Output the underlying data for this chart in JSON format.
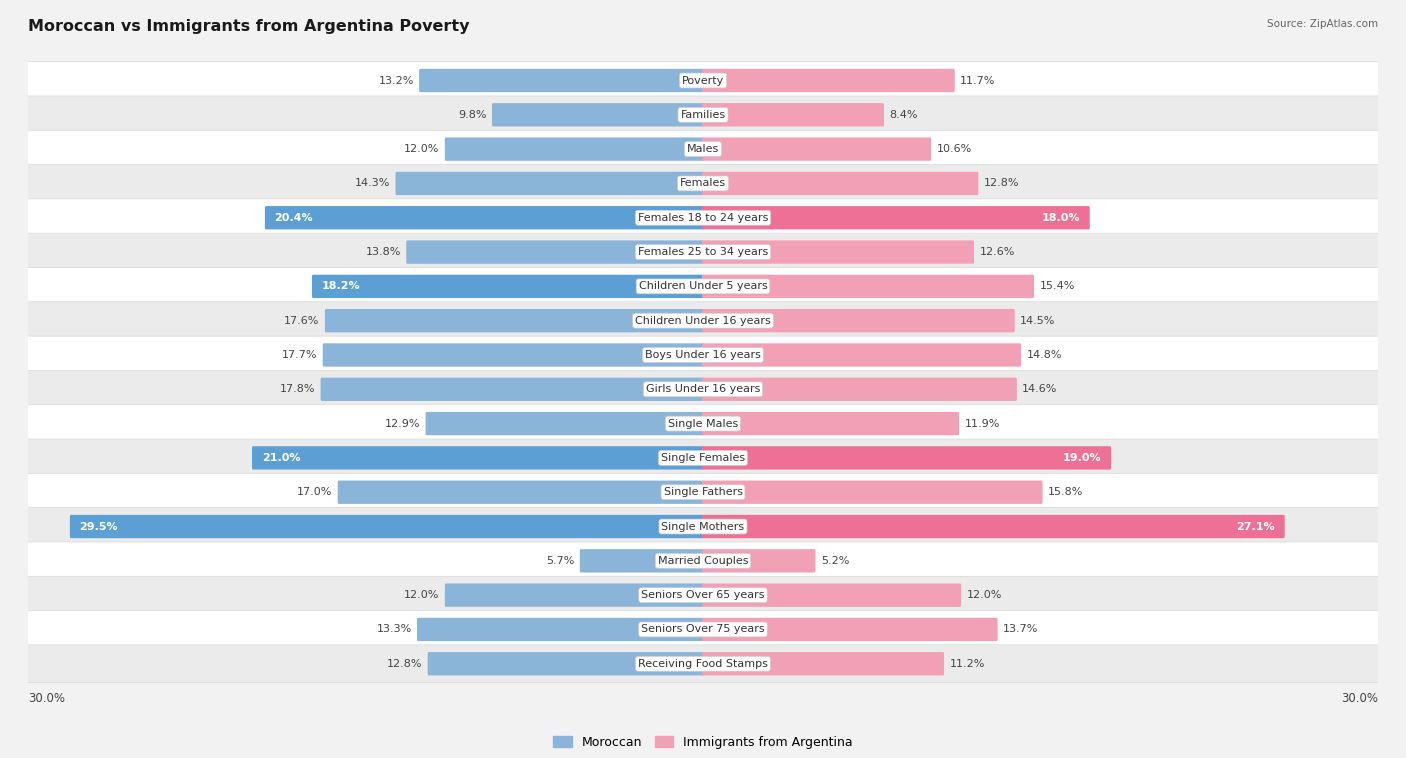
{
  "title": "Moroccan vs Immigrants from Argentina Poverty",
  "source": "Source: ZipAtlas.com",
  "categories": [
    "Poverty",
    "Families",
    "Males",
    "Females",
    "Females 18 to 24 years",
    "Females 25 to 34 years",
    "Children Under 5 years",
    "Children Under 16 years",
    "Boys Under 16 years",
    "Girls Under 16 years",
    "Single Males",
    "Single Females",
    "Single Fathers",
    "Single Mothers",
    "Married Couples",
    "Seniors Over 65 years",
    "Seniors Over 75 years",
    "Receiving Food Stamps"
  ],
  "moroccan": [
    13.2,
    9.8,
    12.0,
    14.3,
    20.4,
    13.8,
    18.2,
    17.6,
    17.7,
    17.8,
    12.9,
    21.0,
    17.0,
    29.5,
    5.7,
    12.0,
    13.3,
    12.8
  ],
  "argentina": [
    11.7,
    8.4,
    10.6,
    12.8,
    18.0,
    12.6,
    15.4,
    14.5,
    14.8,
    14.6,
    11.9,
    19.0,
    15.8,
    27.1,
    5.2,
    12.0,
    13.7,
    11.2
  ],
  "moroccan_color": "#8ab4d8",
  "argentina_color": "#f2a0b5",
  "moroccan_highlight": "#5b9fd4",
  "argentina_highlight": "#ee7096",
  "moroccan_label": "Moroccan",
  "argentina_label": "Immigrants from Argentina",
  "x_max": 30.0,
  "bar_height": 0.58,
  "bg_color": "#f2f2f2",
  "row_bg_light": "#ffffff",
  "row_bg_dark": "#ebebeb",
  "highlight_threshold": 18.0,
  "label_fontsize": 8.0,
  "cat_fontsize": 8.0,
  "title_fontsize": 11.5
}
